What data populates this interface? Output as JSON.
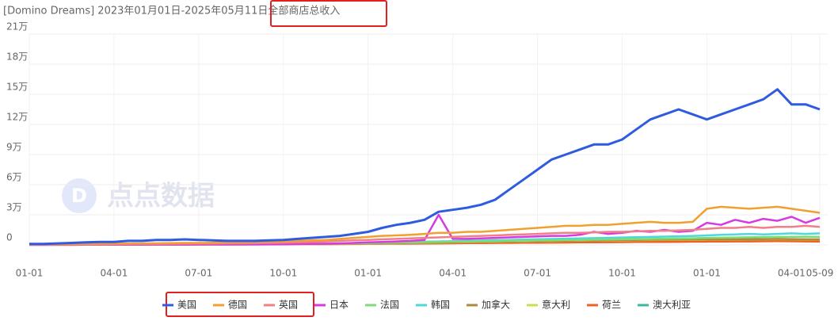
{
  "chart_data": {
    "type": "line",
    "title": "[Domino Dreams] 2023年01月01日-2025年05月11日全部商店总收入",
    "watermark": "点点数据",
    "categories": [
      "01-01",
      null,
      null,
      null,
      null,
      null,
      "04-01",
      null,
      null,
      null,
      null,
      null,
      "07-01",
      null,
      null,
      null,
      null,
      null,
      "10-01",
      null,
      null,
      null,
      null,
      null,
      "01-01",
      null,
      null,
      null,
      null,
      null,
      "04-01",
      null,
      null,
      null,
      null,
      null,
      "07-01",
      null,
      null,
      null,
      null,
      null,
      "10-01",
      null,
      null,
      null,
      null,
      null,
      "01-01",
      null,
      null,
      null,
      null,
      null,
      "04-01",
      null,
      "05-09"
    ],
    "ylim": [
      0,
      210000
    ],
    "yticks": [
      0,
      {
        "value": 30000,
        "label": "3万"
      },
      {
        "value": 60000,
        "label": "6万"
      },
      {
        "value": 90000,
        "label": "9万"
      },
      {
        "value": 120000,
        "label": "12万"
      },
      {
        "value": 150000,
        "label": "15万"
      },
      {
        "value": 180000,
        "label": "18万"
      },
      {
        "value": 210000,
        "label": "21万"
      }
    ],
    "grid": true,
    "legend": "bottom",
    "series": [
      {
        "name": "美国",
        "color": "#2f5be0",
        "values": [
          1000,
          1000,
          1500,
          2000,
          2500,
          3000,
          3000,
          4000,
          4000,
          5000,
          5000,
          5500,
          5000,
          4500,
          4000,
          4000,
          4000,
          4500,
          5000,
          6000,
          7000,
          8000,
          9000,
          11000,
          13000,
          17000,
          20000,
          22000,
          25000,
          33000,
          35000,
          37000,
          40000,
          45000,
          55000,
          65000,
          75000,
          85000,
          90000,
          95000,
          100000,
          100000,
          105000,
          115000,
          125000,
          130000,
          135000,
          130000,
          125000,
          130000,
          135000,
          140000,
          145000,
          155000,
          140000,
          140000,
          135000
        ]
      },
      {
        "name": "德国",
        "color": "#f0a030",
        "values": [
          500,
          600,
          700,
          800,
          900,
          1000,
          1200,
          1400,
          1500,
          1600,
          1800,
          2000,
          2000,
          2200,
          2500,
          2800,
          3000,
          3200,
          3500,
          4000,
          4500,
          5000,
          6000,
          7000,
          8000,
          9000,
          9500,
          10000,
          11000,
          12000,
          12000,
          13000,
          13000,
          14000,
          15000,
          16000,
          17000,
          18000,
          19000,
          19000,
          20000,
          20000,
          21000,
          22000,
          23000,
          22000,
          22000,
          23000,
          36000,
          38000,
          37000,
          36000,
          37000,
          38000,
          36000,
          34000,
          32000
        ]
      },
      {
        "name": "英国",
        "color": "#f07f8a",
        "values": [
          300,
          400,
          400,
          500,
          600,
          700,
          800,
          900,
          1000,
          1000,
          1100,
          1200,
          1300,
          1400,
          1500,
          1600,
          1800,
          2000,
          2200,
          2500,
          3000,
          3500,
          4000,
          4500,
          5000,
          5500,
          6000,
          6500,
          7000,
          7500,
          8000,
          8500,
          9000,
          9500,
          10000,
          10500,
          11000,
          11500,
          12000,
          12000,
          12500,
          13000,
          13000,
          13500,
          14000,
          14000,
          14500,
          15000,
          16000,
          17000,
          17000,
          18000,
          17000,
          18000,
          18000,
          19000,
          18000
        ]
      },
      {
        "name": "日本",
        "color": "#d63ae0",
        "values": [
          100,
          100,
          100,
          100,
          200,
          200,
          200,
          200,
          300,
          300,
          300,
          300,
          400,
          400,
          400,
          500,
          500,
          600,
          700,
          800,
          1000,
          1200,
          1500,
          2000,
          2500,
          3000,
          3500,
          4000,
          5000,
          30000,
          6000,
          6000,
          6500,
          7000,
          7500,
          8000,
          8500,
          9000,
          9000,
          10000,
          13000,
          11000,
          12000,
          14000,
          13000,
          15000,
          13000,
          14000,
          22000,
          20000,
          25000,
          22000,
          26000,
          24000,
          28000,
          22000,
          27000
        ]
      },
      {
        "name": "法国",
        "color": "#7ddc7a",
        "values": [
          200,
          200,
          300,
          300,
          300,
          400,
          400,
          400,
          500,
          500,
          500,
          600,
          600,
          700,
          700,
          800,
          800,
          900,
          1000,
          1100,
          1200,
          1400,
          1600,
          1800,
          2000,
          2200,
          2400,
          2600,
          2800,
          3000,
          3200,
          3400,
          3600,
          3800,
          4000,
          4200,
          4400,
          4600,
          4800,
          5000,
          5200,
          5400,
          5600,
          5800,
          6000,
          6200,
          6400,
          6600,
          7000,
          7200,
          7400,
          7600,
          7800,
          8000,
          8000,
          8200,
          8000
        ]
      },
      {
        "name": "韩国",
        "color": "#4fd8d8",
        "values": [
          100,
          100,
          200,
          200,
          200,
          300,
          300,
          300,
          400,
          400,
          400,
          500,
          500,
          600,
          600,
          700,
          700,
          800,
          900,
          1000,
          1100,
          1300,
          1500,
          1700,
          2000,
          2300,
          2600,
          2900,
          3200,
          3500,
          3800,
          4100,
          4400,
          4700,
          5000,
          5300,
          5600,
          5900,
          6200,
          6500,
          6800,
          7100,
          7400,
          7700,
          8000,
          8300,
          8600,
          8900,
          9500,
          10000,
          10500,
          11000,
          10500,
          11000,
          11500,
          11000,
          11500
        ]
      },
      {
        "name": "加拿大",
        "color": "#b08a3c",
        "values": [
          200,
          200,
          200,
          300,
          300,
          300,
          400,
          400,
          400,
          500,
          500,
          500,
          600,
          600,
          700,
          700,
          800,
          800,
          900,
          900,
          1000,
          1100,
          1200,
          1300,
          1500,
          1600,
          1800,
          2000,
          2200,
          2400,
          2600,
          2800,
          3000,
          3200,
          3400,
          3600,
          3800,
          4000,
          4200,
          4400,
          4600,
          4800,
          5000,
          5000,
          5200,
          5200,
          5400,
          5400,
          5500,
          5600,
          5600,
          5800,
          5800,
          6000,
          5800,
          5600,
          5500
        ]
      },
      {
        "name": "意大利",
        "color": "#c8e04a",
        "values": [
          100,
          100,
          100,
          200,
          200,
          200,
          300,
          300,
          300,
          300,
          400,
          400,
          400,
          500,
          500,
          500,
          600,
          600,
          700,
          700,
          800,
          900,
          1000,
          1100,
          1200,
          1400,
          1600,
          1800,
          2000,
          2200,
          2400,
          2600,
          2800,
          3000,
          3200,
          3400,
          3600,
          3800,
          4000,
          4200,
          4400,
          4500,
          4600,
          4700,
          4800,
          4900,
          5000,
          5000,
          5200,
          5300,
          5400,
          5500,
          5500,
          5600,
          5500,
          5400,
          5300
        ]
      },
      {
        "name": "荷兰",
        "color": "#f06020",
        "values": [
          100,
          100,
          100,
          100,
          200,
          200,
          200,
          200,
          300,
          300,
          300,
          300,
          300,
          400,
          400,
          400,
          500,
          500,
          500,
          600,
          600,
          700,
          800,
          900,
          1000,
          1100,
          1200,
          1300,
          1400,
          1500,
          1600,
          1700,
          1800,
          1900,
          2000,
          2100,
          2200,
          2300,
          2400,
          2500,
          2600,
          2700,
          2800,
          2900,
          3000,
          3000,
          3100,
          3200,
          3300,
          3400,
          3500,
          3500,
          3600,
          3700,
          3600,
          3500,
          3400
        ]
      },
      {
        "name": "澳大利亚",
        "color": "#3cb8a0",
        "values": [
          200,
          200,
          300,
          300,
          300,
          400,
          400,
          500,
          500,
          500,
          600,
          600,
          600,
          700,
          700,
          800,
          800,
          900,
          900,
          1000,
          1100,
          1200,
          1300,
          1400,
          1600,
          1800,
          2000,
          2200,
          2400,
          2600,
          2800,
          3000,
          3200,
          3300,
          3400,
          3500,
          3600,
          3700,
          3800,
          3900,
          4000,
          4100,
          4200,
          4300,
          4400,
          4500,
          4600,
          4700,
          4800,
          4900,
          5000,
          5100,
          5100,
          5200,
          5100,
          5000,
          4900
        ]
      }
    ]
  }
}
